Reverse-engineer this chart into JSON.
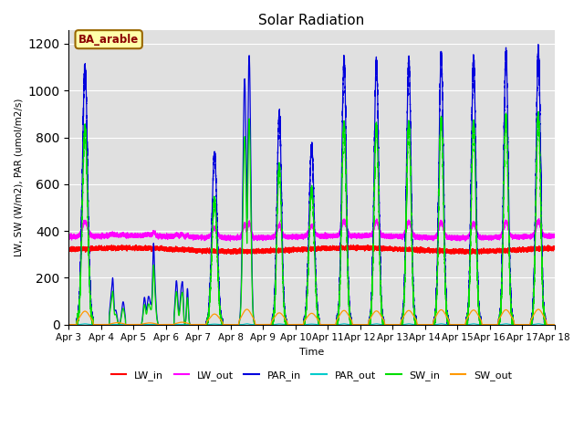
{
  "title": "Solar Radiation",
  "ylabel": "LW, SW (W/m2), PAR (umol/m2/s)",
  "xlabel": "Time",
  "annotation": "BA_arable",
  "ylim": [
    0,
    1260
  ],
  "tick_labels": [
    "Apr 3",
    "Apr 4",
    "Apr 5",
    "Apr 6",
    "Apr 7",
    "Apr 8",
    "Apr 9",
    "Apr 10",
    "Apr 11",
    "Apr 12",
    "Apr 13",
    "Apr 14",
    "Apr 15",
    "Apr 16",
    "Apr 17",
    "Apr 18"
  ],
  "colors": {
    "LW_in": "#ff0000",
    "LW_out": "#ff00ff",
    "PAR_in": "#0000dd",
    "PAR_out": "#00cccc",
    "SW_in": "#00dd00",
    "SW_out": "#ff9900"
  },
  "background_color": "#e0e0e0",
  "face_color": "#ffffff",
  "grid_color": "#ffffff"
}
